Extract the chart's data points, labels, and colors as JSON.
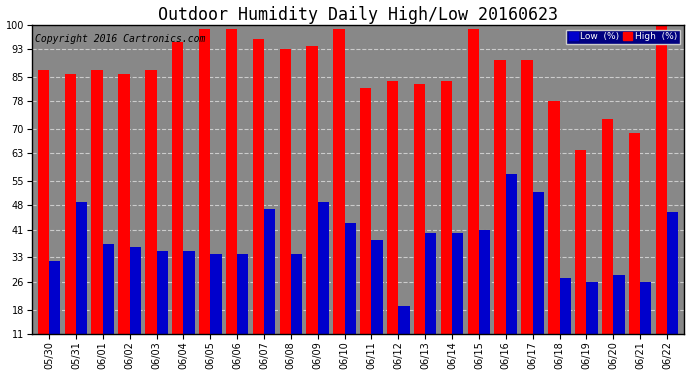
{
  "title": "Outdoor Humidity Daily High/Low 20160623",
  "copyright": "Copyright 2016 Cartronics.com",
  "dates": [
    "05/30",
    "05/31",
    "06/01",
    "06/02",
    "06/03",
    "06/04",
    "06/05",
    "06/06",
    "06/07",
    "06/08",
    "06/09",
    "06/10",
    "06/11",
    "06/12",
    "06/13",
    "06/14",
    "06/15",
    "06/16",
    "06/17",
    "06/18",
    "06/19",
    "06/20",
    "06/21",
    "06/22"
  ],
  "high": [
    87,
    86,
    87,
    86,
    87,
    95,
    99,
    99,
    96,
    93,
    94,
    99,
    82,
    84,
    83,
    84,
    99,
    90,
    90,
    78,
    64,
    73,
    69,
    100
  ],
  "low": [
    32,
    49,
    37,
    36,
    35,
    35,
    34,
    34,
    47,
    34,
    49,
    43,
    38,
    19,
    40,
    40,
    41,
    57,
    52,
    27,
    26,
    28,
    26,
    46
  ],
  "high_color": "#ff0000",
  "low_color": "#0000cc",
  "bg_color": "#ffffff",
  "plot_bg_color": "#888888",
  "grid_color": "#cccccc",
  "yticks": [
    11,
    18,
    26,
    33,
    41,
    48,
    55,
    63,
    70,
    78,
    85,
    93,
    100
  ],
  "ymin": 11,
  "ymax": 100,
  "title_fontsize": 12,
  "tick_fontsize": 7,
  "copyright_fontsize": 7,
  "legend_low_label": "Low  (%)",
  "legend_high_label": "High  (%)"
}
